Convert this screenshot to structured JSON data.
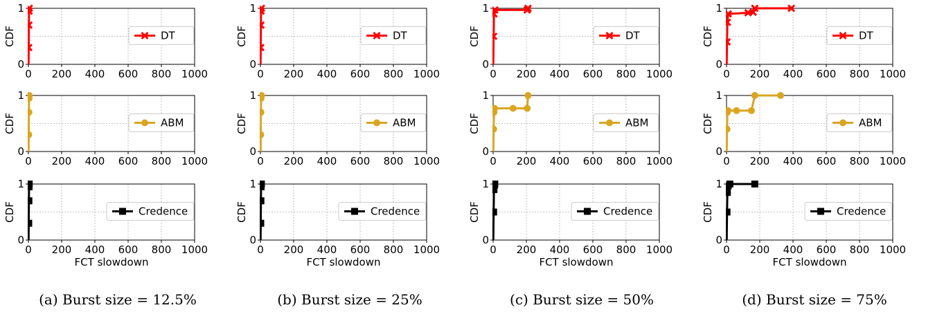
{
  "figure": {
    "ylabel": "CDF",
    "xlabel": "FCT slowdown",
    "x_ticks": [
      0,
      200,
      400,
      600,
      800,
      1000
    ],
    "y_ticks": [
      0,
      1
    ],
    "colors": {
      "DT": "#ff0000",
      "ABM": "#daa520",
      "Credence": "#000000"
    },
    "markers": {
      "DT": "x",
      "ABM": "circle",
      "Credence": "square"
    }
  },
  "chart_data": [
    {
      "type": "line",
      "caption": "(a) Burst size = 12.5%",
      "xlim": [
        0,
        1000
      ],
      "ylim": [
        0,
        1
      ],
      "grid": true,
      "legend_position": "right",
      "series": [
        {
          "name": "DT",
          "points": [
            [
              1,
              0
            ],
            [
              2,
              0.3
            ],
            [
              3,
              0.7
            ],
            [
              4,
              0.95
            ],
            [
              5,
              1.0
            ]
          ]
        },
        {
          "name": "ABM",
          "points": [
            [
              1,
              0
            ],
            [
              2,
              0.3
            ],
            [
              3,
              0.7
            ],
            [
              4,
              0.95
            ],
            [
              5,
              1.0
            ]
          ]
        },
        {
          "name": "Credence",
          "points": [
            [
              1,
              0
            ],
            [
              2,
              0.3
            ],
            [
              3,
              0.7
            ],
            [
              4,
              0.95
            ],
            [
              5,
              1.0
            ]
          ]
        }
      ]
    },
    {
      "type": "line",
      "caption": "(b) Burst size = 25%",
      "xlim": [
        0,
        1000
      ],
      "ylim": [
        0,
        1
      ],
      "grid": true,
      "legend_position": "right",
      "series": [
        {
          "name": "DT",
          "points": [
            [
              1,
              0
            ],
            [
              2,
              0.3
            ],
            [
              3,
              0.7
            ],
            [
              4,
              0.95
            ],
            [
              6,
              1.0
            ]
          ]
        },
        {
          "name": "ABM",
          "points": [
            [
              1,
              0
            ],
            [
              2,
              0.3
            ],
            [
              3,
              0.7
            ],
            [
              4,
              0.95
            ],
            [
              6,
              1.0
            ]
          ]
        },
        {
          "name": "Credence",
          "points": [
            [
              1,
              0
            ],
            [
              2,
              0.3
            ],
            [
              3,
              0.7
            ],
            [
              4,
              0.95
            ],
            [
              6,
              1.0
            ]
          ]
        }
      ]
    },
    {
      "type": "line",
      "caption": "(c) Burst size = 50%",
      "xlim": [
        0,
        1000
      ],
      "ylim": [
        0,
        1
      ],
      "grid": true,
      "legend_position": "right",
      "series": [
        {
          "name": "DT",
          "points": [
            [
              1,
              0
            ],
            [
              3,
              0.5
            ],
            [
              5,
              0.9
            ],
            [
              10,
              0.97
            ],
            [
              205,
              0.97
            ],
            [
              210,
              1.0
            ]
          ]
        },
        {
          "name": "ABM",
          "points": [
            [
              1,
              0
            ],
            [
              3,
              0.4
            ],
            [
              5,
              0.7
            ],
            [
              8,
              0.77
            ],
            [
              120,
              0.77
            ],
            [
              205,
              0.77
            ],
            [
              210,
              1.0
            ]
          ]
        },
        {
          "name": "Credence",
          "points": [
            [
              1,
              0
            ],
            [
              3,
              0.5
            ],
            [
              5,
              0.9
            ],
            [
              8,
              0.98
            ],
            [
              10,
              1.0
            ]
          ]
        }
      ]
    },
    {
      "type": "line",
      "caption": "(d) Burst size = 75%",
      "xlim": [
        0,
        1000
      ],
      "ylim": [
        0,
        1
      ],
      "grid": true,
      "legend_position": "right",
      "series": [
        {
          "name": "DT",
          "points": [
            [
              1,
              0
            ],
            [
              3,
              0.4
            ],
            [
              5,
              0.75
            ],
            [
              10,
              0.9
            ],
            [
              130,
              0.92
            ],
            [
              160,
              0.93
            ],
            [
              170,
              1.0
            ],
            [
              390,
              1.0
            ]
          ]
        },
        {
          "name": "ABM",
          "points": [
            [
              1,
              0
            ],
            [
              3,
              0.4
            ],
            [
              5,
              0.7
            ],
            [
              8,
              0.73
            ],
            [
              60,
              0.73
            ],
            [
              150,
              0.73
            ],
            [
              170,
              1.0
            ],
            [
              325,
              1.0
            ]
          ]
        },
        {
          "name": "Credence",
          "points": [
            [
              1,
              0
            ],
            [
              3,
              0.5
            ],
            [
              5,
              0.85
            ],
            [
              10,
              0.97
            ],
            [
              20,
              1.0
            ],
            [
              170,
              1.0
            ]
          ]
        }
      ]
    }
  ]
}
